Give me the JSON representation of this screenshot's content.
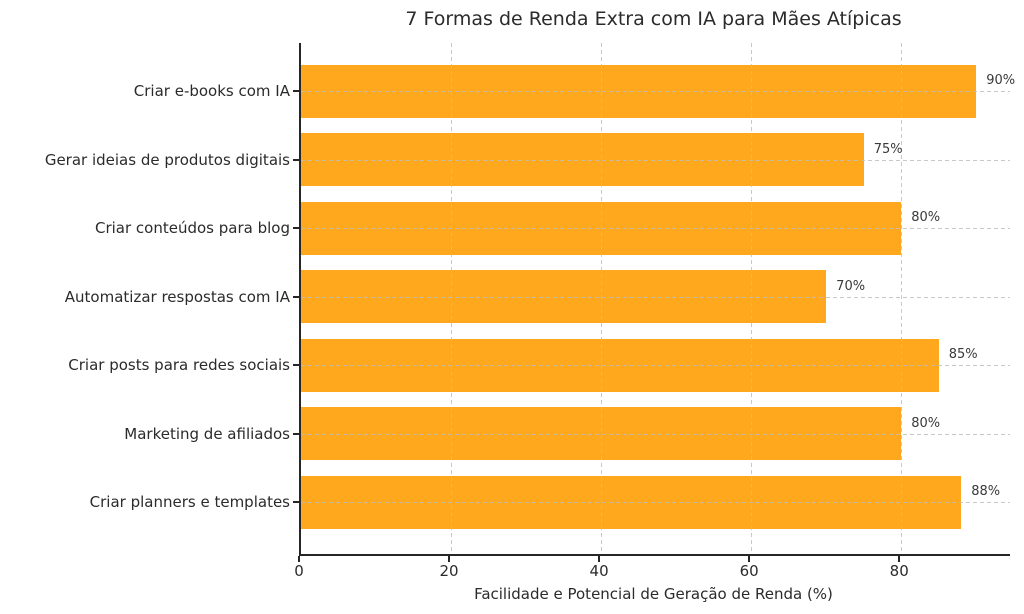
{
  "chart_data": {
    "type": "bar",
    "orientation": "horizontal",
    "title": "7 Formas de Renda Extra com IA para Mães Atípicas",
    "xlabel": "Facilidade e Potencial de Geração de Renda (%)",
    "ylabel": "",
    "categories": [
      "Criar e-books com IA",
      "Gerar ideias de produtos digitais",
      "Criar conteúdos para blog",
      "Automatizar respostas com IA",
      "Criar posts para redes sociais",
      "Marketing de afiliados",
      "Criar planners e templates"
    ],
    "values": [
      90,
      75,
      80,
      70,
      85,
      80,
      88
    ],
    "value_labels": [
      "90%",
      "75%",
      "80%",
      "70%",
      "85%",
      "80%",
      "88%"
    ],
    "xlim": [
      0,
      94.5
    ],
    "xticks": [
      0,
      20,
      40,
      60,
      80
    ],
    "grid": true,
    "grid_style": "dashed",
    "legend": "none",
    "bar_color": "#FFA81E",
    "text_color": "#2b2b2b",
    "value_label_color": "#3a3a3a",
    "grid_color": "#bebebe",
    "axis_color": "#262626",
    "background_color": "#ffffff"
  }
}
